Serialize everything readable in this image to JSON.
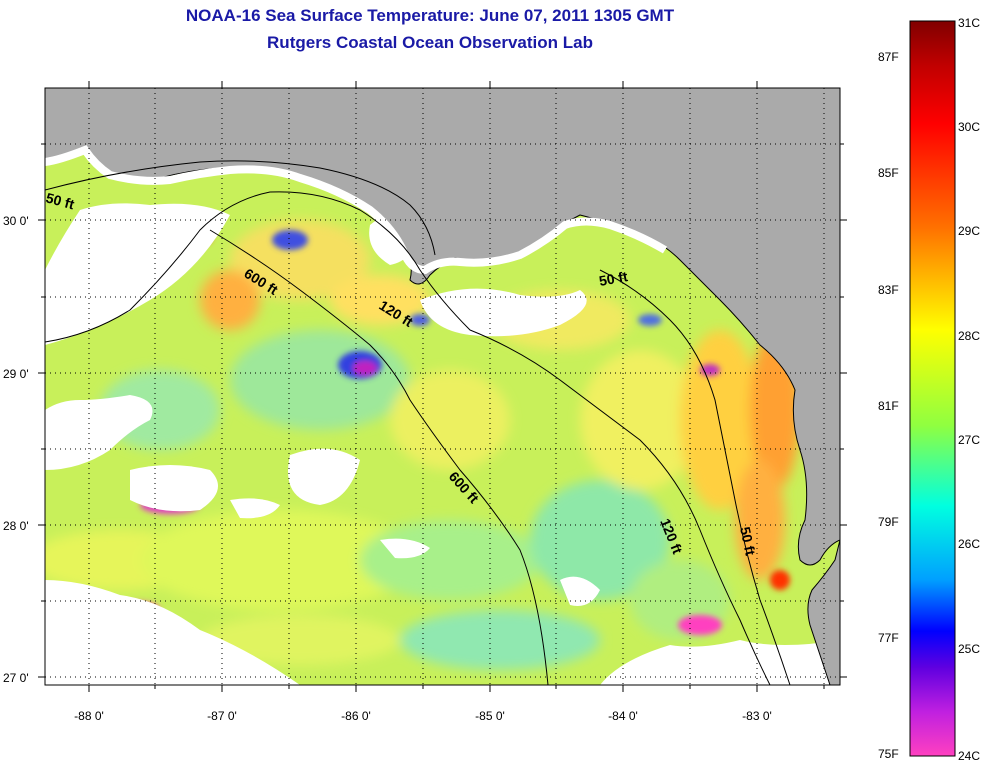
{
  "title_line1": "NOAA-16 Sea Surface Temperature:  June 07, 2011 1305 GMT",
  "title_line2": "Rutgers Coastal Ocean Observation Lab",
  "map": {
    "lon_range": [
      -88.33,
      -82.3
    ],
    "lat_range": [
      26.97,
      30.85
    ],
    "lat_ticks": [
      {
        "value": 30,
        "label": "30 0'"
      },
      {
        "value": 29,
        "label": "29 0'"
      },
      {
        "value": 28,
        "label": "28 0'"
      },
      {
        "value": 27,
        "label": "27 0'"
      }
    ],
    "lon_ticks": [
      {
        "value": -88,
        "label": "-88 0'"
      },
      {
        "value": -87,
        "label": "-87 0'"
      },
      {
        "value": -86,
        "label": "-86 0'"
      },
      {
        "value": -85,
        "label": "-85 0'"
      },
      {
        "value": -84,
        "label": "-84 0'"
      },
      {
        "value": -83,
        "label": "-83 0'"
      }
    ],
    "grid": "dotted",
    "land_color": "#aaaaaa",
    "cloud_color": "#ffffff",
    "bathymetry_labels": [
      "50 ft",
      "600 ft",
      "120 ft",
      "50 ft",
      "600 ft",
      "120 ft",
      "50 ft"
    ]
  },
  "colorbar": {
    "celsius_labels": [
      "31C",
      "30C",
      "29C",
      "28C",
      "27C",
      "26C",
      "25C",
      "24C"
    ],
    "fahrenheit_labels": [
      "87F",
      "85F",
      "83F",
      "81F",
      "79F",
      "77F",
      "75F"
    ],
    "colors": [
      "#ff3cc8",
      "#b400ff",
      "#0000ff",
      "#00a0ff",
      "#00ffff",
      "#00e080",
      "#80ff40",
      "#ffff00",
      "#ffc000",
      "#ff7000",
      "#ff0000",
      "#800000"
    ]
  }
}
